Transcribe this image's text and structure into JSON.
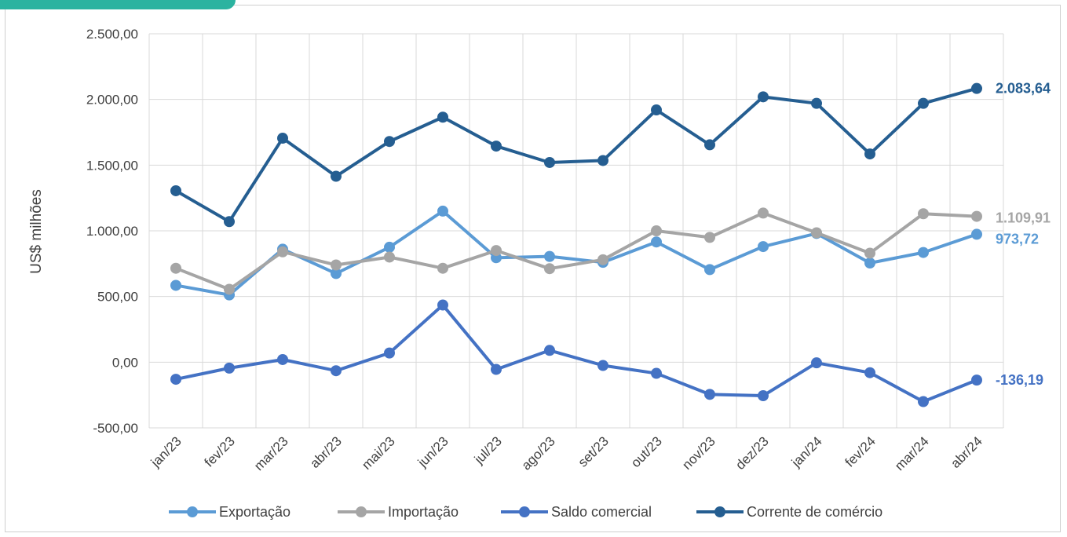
{
  "chart_data": {
    "type": "line",
    "ylabel": "US$ milhões",
    "ylim": [
      -500,
      2500
    ],
    "yticks": [
      -500,
      0,
      500,
      1000,
      1500,
      2000,
      2500
    ],
    "ytick_labels": [
      "-500,00",
      "0,00",
      "500,00",
      "1.000,00",
      "1.500,00",
      "2.000,00",
      "2.500,00"
    ],
    "categories": [
      "jan/23",
      "fev/23",
      "mar/23",
      "abr/23",
      "mai/23",
      "jun/23",
      "jul/23",
      "ago/23",
      "set/23",
      "out/23",
      "nov/23",
      "dez/23",
      "jan/24",
      "fev/24",
      "mar/24",
      "abr/24"
    ],
    "grid": true,
    "legend_position": "bottom",
    "series": [
      {
        "name": "Exportação",
        "color": "#5b9bd5",
        "end_label": "973,72",
        "values": [
          585,
          512,
          860,
          675,
          875,
          1150,
          795,
          805,
          760,
          915,
          705,
          880,
          980,
          755,
          835,
          973.72
        ]
      },
      {
        "name": "Importação",
        "color": "#a5a5a5",
        "end_label": "1.109,91",
        "values": [
          715,
          555,
          840,
          740,
          800,
          715,
          850,
          712,
          780,
          1000,
          950,
          1135,
          985,
          830,
          1130,
          1109.91
        ]
      },
      {
        "name": "Saldo comercial",
        "color": "#4472c4",
        "end_label": "-136,19",
        "values": [
          -130,
          -45,
          20,
          -65,
          70,
          435,
          -55,
          90,
          -25,
          -85,
          -245,
          -255,
          -5,
          -80,
          -300,
          -136.19
        ]
      },
      {
        "name": "Corrente de comércio",
        "color": "#255e91",
        "end_label": "2.083,64",
        "values": [
          1305,
          1070,
          1705,
          1415,
          1680,
          1865,
          1645,
          1520,
          1535,
          1920,
          1655,
          2020,
          1970,
          1585,
          1970,
          2083.64
        ]
      }
    ]
  }
}
